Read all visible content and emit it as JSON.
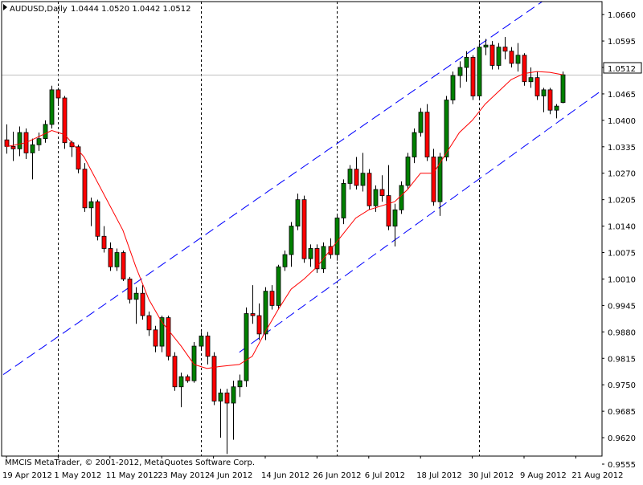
{
  "header": {
    "symbol": "AUDUSD,Daily",
    "ohlc": "1.0444 1.0520 1.0442 1.0512"
  },
  "footer": {
    "copyright": "MMCIS MetaTrader, © 2001-2012, MetaQuotes Software Corp."
  },
  "current_price_label": "1.0512",
  "colors": {
    "bull": "#008000",
    "bear": "#ff0000",
    "wick": "#000000",
    "ma": "#ff0000",
    "channel": "#0000ff",
    "current_price_line": "#c0c0c0",
    "price_tag_bg": "#ffffff"
  },
  "chart_data": {
    "type": "candlestick",
    "symbol": "AUDUSD",
    "timeframe": "Daily",
    "y_range": [
      0.9555,
      1.068
    ],
    "y_ticks": [
      "1.0660",
      "1.0595",
      "1.0530",
      "1.0465",
      "1.0400",
      "1.0335",
      "1.0270",
      "1.0205",
      "1.0140",
      "1.0075",
      "1.0010",
      "0.9945",
      "0.9880",
      "0.9815",
      "0.9750",
      "0.9685",
      "0.9620",
      "0.9555"
    ],
    "x_labels": [
      {
        "label": "19 Apr 2012",
        "bar": 0
      },
      {
        "label": "1 May 2012",
        "bar": 8
      },
      {
        "label": "11 May 2012",
        "bar": 16
      },
      {
        "label": "23 May 2012",
        "bar": 24
      },
      {
        "label": "4 Jun 2012",
        "bar": 32
      },
      {
        "label": "14 Jun 2012",
        "bar": 40
      },
      {
        "label": "26 Jun 2012",
        "bar": 48
      },
      {
        "label": "6 Jul 2012",
        "bar": 56
      },
      {
        "label": "18 Jul 2012",
        "bar": 64
      },
      {
        "label": "30 Jul 2012",
        "bar": 72
      },
      {
        "label": "9 Aug 2012",
        "bar": 80
      },
      {
        "label": "21 Aug 2012",
        "bar": 88
      }
    ],
    "period_separators": [
      8,
      30,
      51,
      73
    ],
    "current_price": 1.0512,
    "candles": [
      [
        1.0352,
        1.039,
        1.0318,
        1.0336
      ],
      [
        1.0336,
        1.0372,
        1.03,
        1.033
      ],
      [
        1.033,
        1.0385,
        1.0312,
        1.037
      ],
      [
        1.037,
        1.038,
        1.0305,
        1.032
      ],
      [
        1.032,
        1.0355,
        1.0255,
        1.034
      ],
      [
        1.034,
        1.037,
        1.0325,
        1.0355
      ],
      [
        1.0355,
        1.04,
        1.0345,
        1.039
      ],
      [
        1.039,
        1.0485,
        1.038,
        1.0475
      ],
      [
        1.0475,
        1.048,
        1.0435,
        1.0455
      ],
      [
        1.0455,
        1.046,
        1.033,
        1.0345
      ],
      [
        1.0345,
        1.035,
        1.031,
        1.0335
      ],
      [
        1.0335,
        1.034,
        1.027,
        1.028
      ],
      [
        1.028,
        1.0295,
        1.0175,
        1.0185
      ],
      [
        1.0185,
        1.021,
        1.014,
        1.02
      ],
      [
        1.02,
        1.0205,
        1.0105,
        1.0115
      ],
      [
        1.0115,
        1.014,
        1.0075,
        1.0085
      ],
      [
        1.0085,
        1.01,
        1.003,
        1.004
      ],
      [
        1.004,
        1.0085,
        1.003,
        1.0075
      ],
      [
        1.0075,
        1.008,
        1.0005,
        1.001
      ],
      [
        1.001,
        1.0015,
        0.995,
        0.996
      ],
      [
        0.996,
        0.999,
        0.99,
        0.9975
      ],
      [
        0.9975,
        0.9995,
        0.991,
        0.992
      ],
      [
        0.992,
        0.993,
        0.987,
        0.9885
      ],
      [
        0.9885,
        0.9895,
        0.983,
        0.9845
      ],
      [
        0.9845,
        0.992,
        0.983,
        0.9915
      ],
      [
        0.9915,
        0.992,
        0.981,
        0.982
      ],
      [
        0.982,
        0.983,
        0.9735,
        0.9745
      ],
      [
        0.9745,
        0.978,
        0.9695,
        0.977
      ],
      [
        0.977,
        0.9775,
        0.9755,
        0.976
      ],
      [
        0.976,
        0.9855,
        0.9755,
        0.9845
      ],
      [
        0.9845,
        0.988,
        0.9835,
        0.987
      ],
      [
        0.987,
        0.988,
        0.98,
        0.982
      ],
      [
        0.982,
        0.983,
        0.97,
        0.971
      ],
      [
        0.971,
        0.974,
        0.962,
        0.973
      ],
      [
        0.973,
        0.974,
        0.958,
        0.9705
      ],
      [
        0.9705,
        0.976,
        0.9615,
        0.9745
      ],
      [
        0.9745,
        0.9775,
        0.972,
        0.976
      ],
      [
        0.976,
        0.994,
        0.9745,
        0.9925
      ],
      [
        0.9925,
        0.9995,
        0.99,
        0.992
      ],
      [
        0.992,
        0.995,
        0.986,
        0.9875
      ],
      [
        0.9875,
        0.999,
        0.986,
        0.998
      ],
      [
        0.998,
        0.9995,
        0.9935,
        0.9945
      ],
      [
        0.9945,
        1.0045,
        0.9935,
        1.004
      ],
      [
        1.004,
        1.008,
        1.003,
        1.007
      ],
      [
        1.007,
        1.015,
        1.004,
        1.014
      ],
      [
        1.014,
        1.022,
        1.013,
        1.0205
      ],
      [
        1.0205,
        1.0215,
        1.005,
        1.006
      ],
      [
        1.006,
        1.0095,
        1.004,
        1.0085
      ],
      [
        1.0085,
        1.0095,
        1.0025,
        1.0035
      ],
      [
        1.0035,
        1.01,
        1.0025,
        1.009
      ],
      [
        1.009,
        1.011,
        1.006,
        1.007
      ],
      [
        1.007,
        1.017,
        1.0055,
        1.016
      ],
      [
        1.016,
        1.0255,
        1.0145,
        1.0245
      ],
      [
        1.0245,
        1.029,
        1.023,
        1.028
      ],
      [
        1.028,
        1.031,
        1.023,
        1.024
      ],
      [
        1.024,
        1.032,
        1.0225,
        1.027
      ],
      [
        1.027,
        1.028,
        1.018,
        1.019
      ],
      [
        1.019,
        1.024,
        1.0175,
        1.023
      ],
      [
        1.023,
        1.0265,
        1.02,
        1.0215
      ],
      [
        1.0215,
        1.029,
        1.013,
        1.014
      ],
      [
        1.014,
        1.0195,
        1.009,
        1.018
      ],
      [
        1.018,
        1.025,
        1.017,
        1.024
      ],
      [
        1.024,
        1.032,
        1.023,
        1.031
      ],
      [
        1.031,
        1.038,
        1.0295,
        1.037
      ],
      [
        1.037,
        1.043,
        1.036,
        1.042
      ],
      [
        1.042,
        1.044,
        1.03,
        1.031
      ],
      [
        1.031,
        1.033,
        1.019,
        1.02
      ],
      [
        1.02,
        1.032,
        1.0165,
        1.031
      ],
      [
        1.031,
        1.046,
        1.03,
        1.045
      ],
      [
        1.045,
        1.052,
        1.044,
        1.051
      ],
      [
        1.051,
        1.0545,
        1.048,
        1.053
      ],
      [
        1.053,
        1.057,
        1.0495,
        1.0555
      ],
      [
        1.0555,
        1.056,
        1.045,
        1.046
      ],
      [
        1.046,
        1.059,
        1.0455,
        1.058
      ],
      [
        1.058,
        1.06,
        1.056,
        1.0585
      ],
      [
        1.0585,
        1.0595,
        1.0525,
        1.0535
      ],
      [
        1.0535,
        1.059,
        1.0525,
        1.058
      ],
      [
        1.058,
        1.0605,
        1.055,
        1.057
      ],
      [
        1.057,
        1.058,
        1.053,
        1.054
      ],
      [
        1.054,
        1.059,
        1.052,
        1.056
      ],
      [
        1.056,
        1.0565,
        1.0485,
        1.0495
      ],
      [
        1.0495,
        1.053,
        1.048,
        1.0505
      ],
      [
        1.0505,
        1.052,
        1.045,
        1.046
      ],
      [
        1.046,
        1.048,
        1.042,
        1.0475
      ],
      [
        1.0475,
        1.048,
        1.0415,
        1.0425
      ],
      [
        1.0425,
        1.044,
        1.0405,
        1.0435
      ],
      [
        1.0444,
        1.052,
        1.0442,
        1.0512
      ]
    ],
    "moving_average": {
      "type": "line",
      "values": [
        [
          0,
          1.0335
        ],
        [
          3,
          1.0345
        ],
        [
          7,
          1.0375
        ],
        [
          9,
          1.0365
        ],
        [
          12,
          1.031
        ],
        [
          15,
          1.022
        ],
        [
          18,
          1.013
        ],
        [
          20,
          1.004
        ],
        [
          22,
          0.996
        ],
        [
          24,
          0.9905
        ],
        [
          27,
          0.9845
        ],
        [
          29,
          0.98
        ],
        [
          31,
          0.979
        ],
        [
          33,
          0.9795
        ],
        [
          36,
          0.98
        ],
        [
          38,
          0.982
        ],
        [
          40,
          0.988
        ],
        [
          42,
          0.9935
        ],
        [
          44,
          0.9985
        ],
        [
          46,
          1.001
        ],
        [
          48,
          1.004
        ],
        [
          50,
          1.008
        ],
        [
          52,
          1.012
        ],
        [
          54,
          1.016
        ],
        [
          56,
          1.018
        ],
        [
          58,
          1.019
        ],
        [
          60,
          1.02
        ],
        [
          62,
          1.023
        ],
        [
          64,
          1.027
        ],
        [
          66,
          1.027
        ],
        [
          68,
          1.032
        ],
        [
          70,
          1.037
        ],
        [
          72,
          1.04
        ],
        [
          74,
          1.044
        ],
        [
          76,
          1.047
        ],
        [
          78,
          1.05
        ],
        [
          80,
          1.0515
        ],
        [
          82,
          1.052
        ],
        [
          84,
          1.0518
        ],
        [
          86,
          1.0512
        ]
      ]
    },
    "channel_lines": [
      {
        "from": [
          -0.5,
          0.9775
        ],
        "to": [
          84,
          1.0705
        ]
      },
      {
        "from": [
          36,
          0.983
        ],
        "to": [
          93,
          1.0485
        ]
      }
    ]
  }
}
